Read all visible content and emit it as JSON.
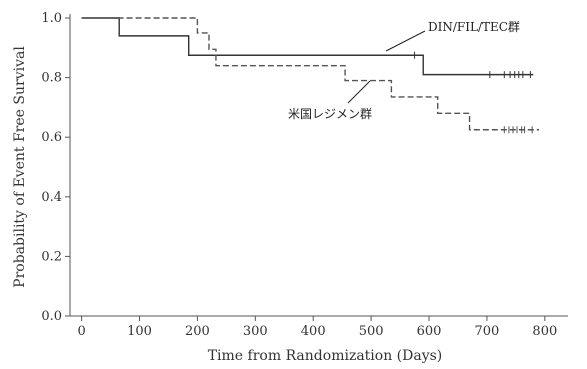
{
  "chart_data": {
    "type": "line",
    "title": "",
    "xlabel": "Time from Randomization (Days)",
    "ylabel": "Probability of Event Free Survival",
    "xlim": [
      -20,
      840
    ],
    "ylim": [
      0,
      1.0
    ],
    "x_ticks": [
      0,
      100,
      200,
      300,
      400,
      500,
      600,
      700,
      800
    ],
    "y_ticks": [
      0.0,
      0.2,
      0.4,
      0.6,
      0.8,
      1.0
    ],
    "x_tick_labels": [
      "0",
      "100",
      "200",
      "300",
      "400",
      "500",
      "600",
      "700",
      "800"
    ],
    "y_tick_labels": [
      "0.0",
      "0.2",
      "0.4",
      "0.6",
      "0.8",
      "1.0"
    ],
    "grid": false,
    "series": [
      {
        "name": "DIN/FIL/TEC群",
        "style": "solid",
        "color": "#333333",
        "steps": [
          [
            0,
            1.0
          ],
          [
            65,
            0.94
          ],
          [
            185,
            0.875
          ],
          [
            590,
            0.81
          ],
          [
            780,
            0.81
          ]
        ],
        "censored": [
          [
            575,
            0.875
          ],
          [
            705,
            0.81
          ],
          [
            730,
            0.81
          ],
          [
            740,
            0.81
          ],
          [
            748,
            0.81
          ],
          [
            755,
            0.81
          ],
          [
            762,
            0.81
          ],
          [
            775,
            0.81
          ]
        ]
      },
      {
        "name": "米国レジメン群",
        "style": "dashed",
        "color": "#555555",
        "steps": [
          [
            0,
            1.0
          ],
          [
            200,
            0.95
          ],
          [
            220,
            0.895
          ],
          [
            232,
            0.84
          ],
          [
            455,
            0.79
          ],
          [
            535,
            0.735
          ],
          [
            615,
            0.68
          ],
          [
            670,
            0.625
          ],
          [
            790,
            0.625
          ]
        ],
        "censored": [
          [
            730,
            0.625
          ],
          [
            738,
            0.625
          ],
          [
            745,
            0.625
          ],
          [
            752,
            0.625
          ],
          [
            760,
            0.625
          ],
          [
            765,
            0.625
          ],
          [
            778,
            0.625
          ]
        ]
      }
    ],
    "annotations": [
      {
        "text": "DIN/FIL/TEC群",
        "series": 0
      },
      {
        "text": "米国レジメン群",
        "series": 1
      }
    ]
  }
}
